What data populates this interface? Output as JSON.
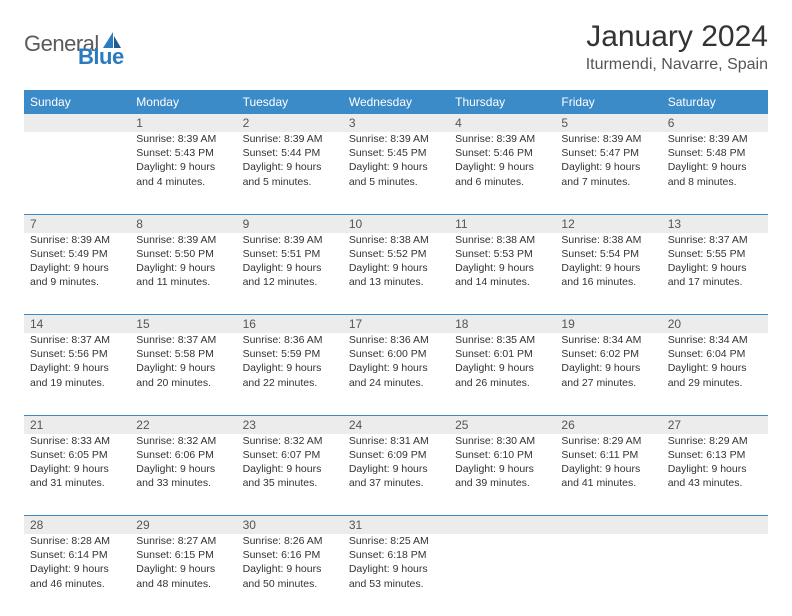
{
  "logo": {
    "general": "General",
    "blue": "Blue"
  },
  "title": "January 2024",
  "location": "Iturmendi, Navarre, Spain",
  "colors": {
    "header_bg": "#3b8bc9",
    "header_text": "#ffffff",
    "daynum_bg": "#ececec",
    "border": "#3b8bc9",
    "logo_gray": "#5a5a5a",
    "logo_blue": "#2b7bbf"
  },
  "days_of_week": [
    "Sunday",
    "Monday",
    "Tuesday",
    "Wednesday",
    "Thursday",
    "Friday",
    "Saturday"
  ],
  "weeks": [
    {
      "nums": [
        "",
        "1",
        "2",
        "3",
        "4",
        "5",
        "6"
      ],
      "cells": [
        null,
        {
          "sunrise": "Sunrise: 8:39 AM",
          "sunset": "Sunset: 5:43 PM",
          "day1": "Daylight: 9 hours",
          "day2": "and 4 minutes."
        },
        {
          "sunrise": "Sunrise: 8:39 AM",
          "sunset": "Sunset: 5:44 PM",
          "day1": "Daylight: 9 hours",
          "day2": "and 5 minutes."
        },
        {
          "sunrise": "Sunrise: 8:39 AM",
          "sunset": "Sunset: 5:45 PM",
          "day1": "Daylight: 9 hours",
          "day2": "and 5 minutes."
        },
        {
          "sunrise": "Sunrise: 8:39 AM",
          "sunset": "Sunset: 5:46 PM",
          "day1": "Daylight: 9 hours",
          "day2": "and 6 minutes."
        },
        {
          "sunrise": "Sunrise: 8:39 AM",
          "sunset": "Sunset: 5:47 PM",
          "day1": "Daylight: 9 hours",
          "day2": "and 7 minutes."
        },
        {
          "sunrise": "Sunrise: 8:39 AM",
          "sunset": "Sunset: 5:48 PM",
          "day1": "Daylight: 9 hours",
          "day2": "and 8 minutes."
        }
      ]
    },
    {
      "nums": [
        "7",
        "8",
        "9",
        "10",
        "11",
        "12",
        "13"
      ],
      "cells": [
        {
          "sunrise": "Sunrise: 8:39 AM",
          "sunset": "Sunset: 5:49 PM",
          "day1": "Daylight: 9 hours",
          "day2": "and 9 minutes."
        },
        {
          "sunrise": "Sunrise: 8:39 AM",
          "sunset": "Sunset: 5:50 PM",
          "day1": "Daylight: 9 hours",
          "day2": "and 11 minutes."
        },
        {
          "sunrise": "Sunrise: 8:39 AM",
          "sunset": "Sunset: 5:51 PM",
          "day1": "Daylight: 9 hours",
          "day2": "and 12 minutes."
        },
        {
          "sunrise": "Sunrise: 8:38 AM",
          "sunset": "Sunset: 5:52 PM",
          "day1": "Daylight: 9 hours",
          "day2": "and 13 minutes."
        },
        {
          "sunrise": "Sunrise: 8:38 AM",
          "sunset": "Sunset: 5:53 PM",
          "day1": "Daylight: 9 hours",
          "day2": "and 14 minutes."
        },
        {
          "sunrise": "Sunrise: 8:38 AM",
          "sunset": "Sunset: 5:54 PM",
          "day1": "Daylight: 9 hours",
          "day2": "and 16 minutes."
        },
        {
          "sunrise": "Sunrise: 8:37 AM",
          "sunset": "Sunset: 5:55 PM",
          "day1": "Daylight: 9 hours",
          "day2": "and 17 minutes."
        }
      ]
    },
    {
      "nums": [
        "14",
        "15",
        "16",
        "17",
        "18",
        "19",
        "20"
      ],
      "cells": [
        {
          "sunrise": "Sunrise: 8:37 AM",
          "sunset": "Sunset: 5:56 PM",
          "day1": "Daylight: 9 hours",
          "day2": "and 19 minutes."
        },
        {
          "sunrise": "Sunrise: 8:37 AM",
          "sunset": "Sunset: 5:58 PM",
          "day1": "Daylight: 9 hours",
          "day2": "and 20 minutes."
        },
        {
          "sunrise": "Sunrise: 8:36 AM",
          "sunset": "Sunset: 5:59 PM",
          "day1": "Daylight: 9 hours",
          "day2": "and 22 minutes."
        },
        {
          "sunrise": "Sunrise: 8:36 AM",
          "sunset": "Sunset: 6:00 PM",
          "day1": "Daylight: 9 hours",
          "day2": "and 24 minutes."
        },
        {
          "sunrise": "Sunrise: 8:35 AM",
          "sunset": "Sunset: 6:01 PM",
          "day1": "Daylight: 9 hours",
          "day2": "and 26 minutes."
        },
        {
          "sunrise": "Sunrise: 8:34 AM",
          "sunset": "Sunset: 6:02 PM",
          "day1": "Daylight: 9 hours",
          "day2": "and 27 minutes."
        },
        {
          "sunrise": "Sunrise: 8:34 AM",
          "sunset": "Sunset: 6:04 PM",
          "day1": "Daylight: 9 hours",
          "day2": "and 29 minutes."
        }
      ]
    },
    {
      "nums": [
        "21",
        "22",
        "23",
        "24",
        "25",
        "26",
        "27"
      ],
      "cells": [
        {
          "sunrise": "Sunrise: 8:33 AM",
          "sunset": "Sunset: 6:05 PM",
          "day1": "Daylight: 9 hours",
          "day2": "and 31 minutes."
        },
        {
          "sunrise": "Sunrise: 8:32 AM",
          "sunset": "Sunset: 6:06 PM",
          "day1": "Daylight: 9 hours",
          "day2": "and 33 minutes."
        },
        {
          "sunrise": "Sunrise: 8:32 AM",
          "sunset": "Sunset: 6:07 PM",
          "day1": "Daylight: 9 hours",
          "day2": "and 35 minutes."
        },
        {
          "sunrise": "Sunrise: 8:31 AM",
          "sunset": "Sunset: 6:09 PM",
          "day1": "Daylight: 9 hours",
          "day2": "and 37 minutes."
        },
        {
          "sunrise": "Sunrise: 8:30 AM",
          "sunset": "Sunset: 6:10 PM",
          "day1": "Daylight: 9 hours",
          "day2": "and 39 minutes."
        },
        {
          "sunrise": "Sunrise: 8:29 AM",
          "sunset": "Sunset: 6:11 PM",
          "day1": "Daylight: 9 hours",
          "day2": "and 41 minutes."
        },
        {
          "sunrise": "Sunrise: 8:29 AM",
          "sunset": "Sunset: 6:13 PM",
          "day1": "Daylight: 9 hours",
          "day2": "and 43 minutes."
        }
      ]
    },
    {
      "nums": [
        "28",
        "29",
        "30",
        "31",
        "",
        "",
        ""
      ],
      "cells": [
        {
          "sunrise": "Sunrise: 8:28 AM",
          "sunset": "Sunset: 6:14 PM",
          "day1": "Daylight: 9 hours",
          "day2": "and 46 minutes."
        },
        {
          "sunrise": "Sunrise: 8:27 AM",
          "sunset": "Sunset: 6:15 PM",
          "day1": "Daylight: 9 hours",
          "day2": "and 48 minutes."
        },
        {
          "sunrise": "Sunrise: 8:26 AM",
          "sunset": "Sunset: 6:16 PM",
          "day1": "Daylight: 9 hours",
          "day2": "and 50 minutes."
        },
        {
          "sunrise": "Sunrise: 8:25 AM",
          "sunset": "Sunset: 6:18 PM",
          "day1": "Daylight: 9 hours",
          "day2": "and 53 minutes."
        },
        null,
        null,
        null
      ]
    }
  ]
}
